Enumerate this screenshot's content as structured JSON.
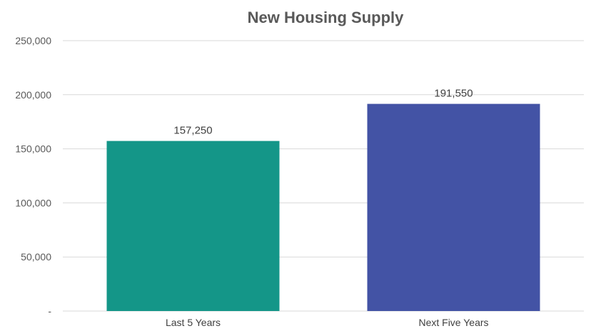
{
  "chart_data": {
    "type": "bar",
    "title": "New Housing Supply",
    "categories": [
      "Last 5 Years",
      "Next Five Years"
    ],
    "values": [
      157250,
      191550
    ],
    "value_labels": [
      "157,250",
      "191,550"
    ],
    "colors": [
      "#149688",
      "#4353a5"
    ],
    "ylim": [
      0,
      250000
    ],
    "yticks": [
      0,
      50000,
      100000,
      150000,
      200000,
      250000
    ],
    "ytick_labels": [
      "-",
      "50,000",
      "100,000",
      "150,000",
      "200,000",
      "250,000"
    ],
    "xlabel": "",
    "ylabel": "",
    "grid": true,
    "legend": "none"
  }
}
